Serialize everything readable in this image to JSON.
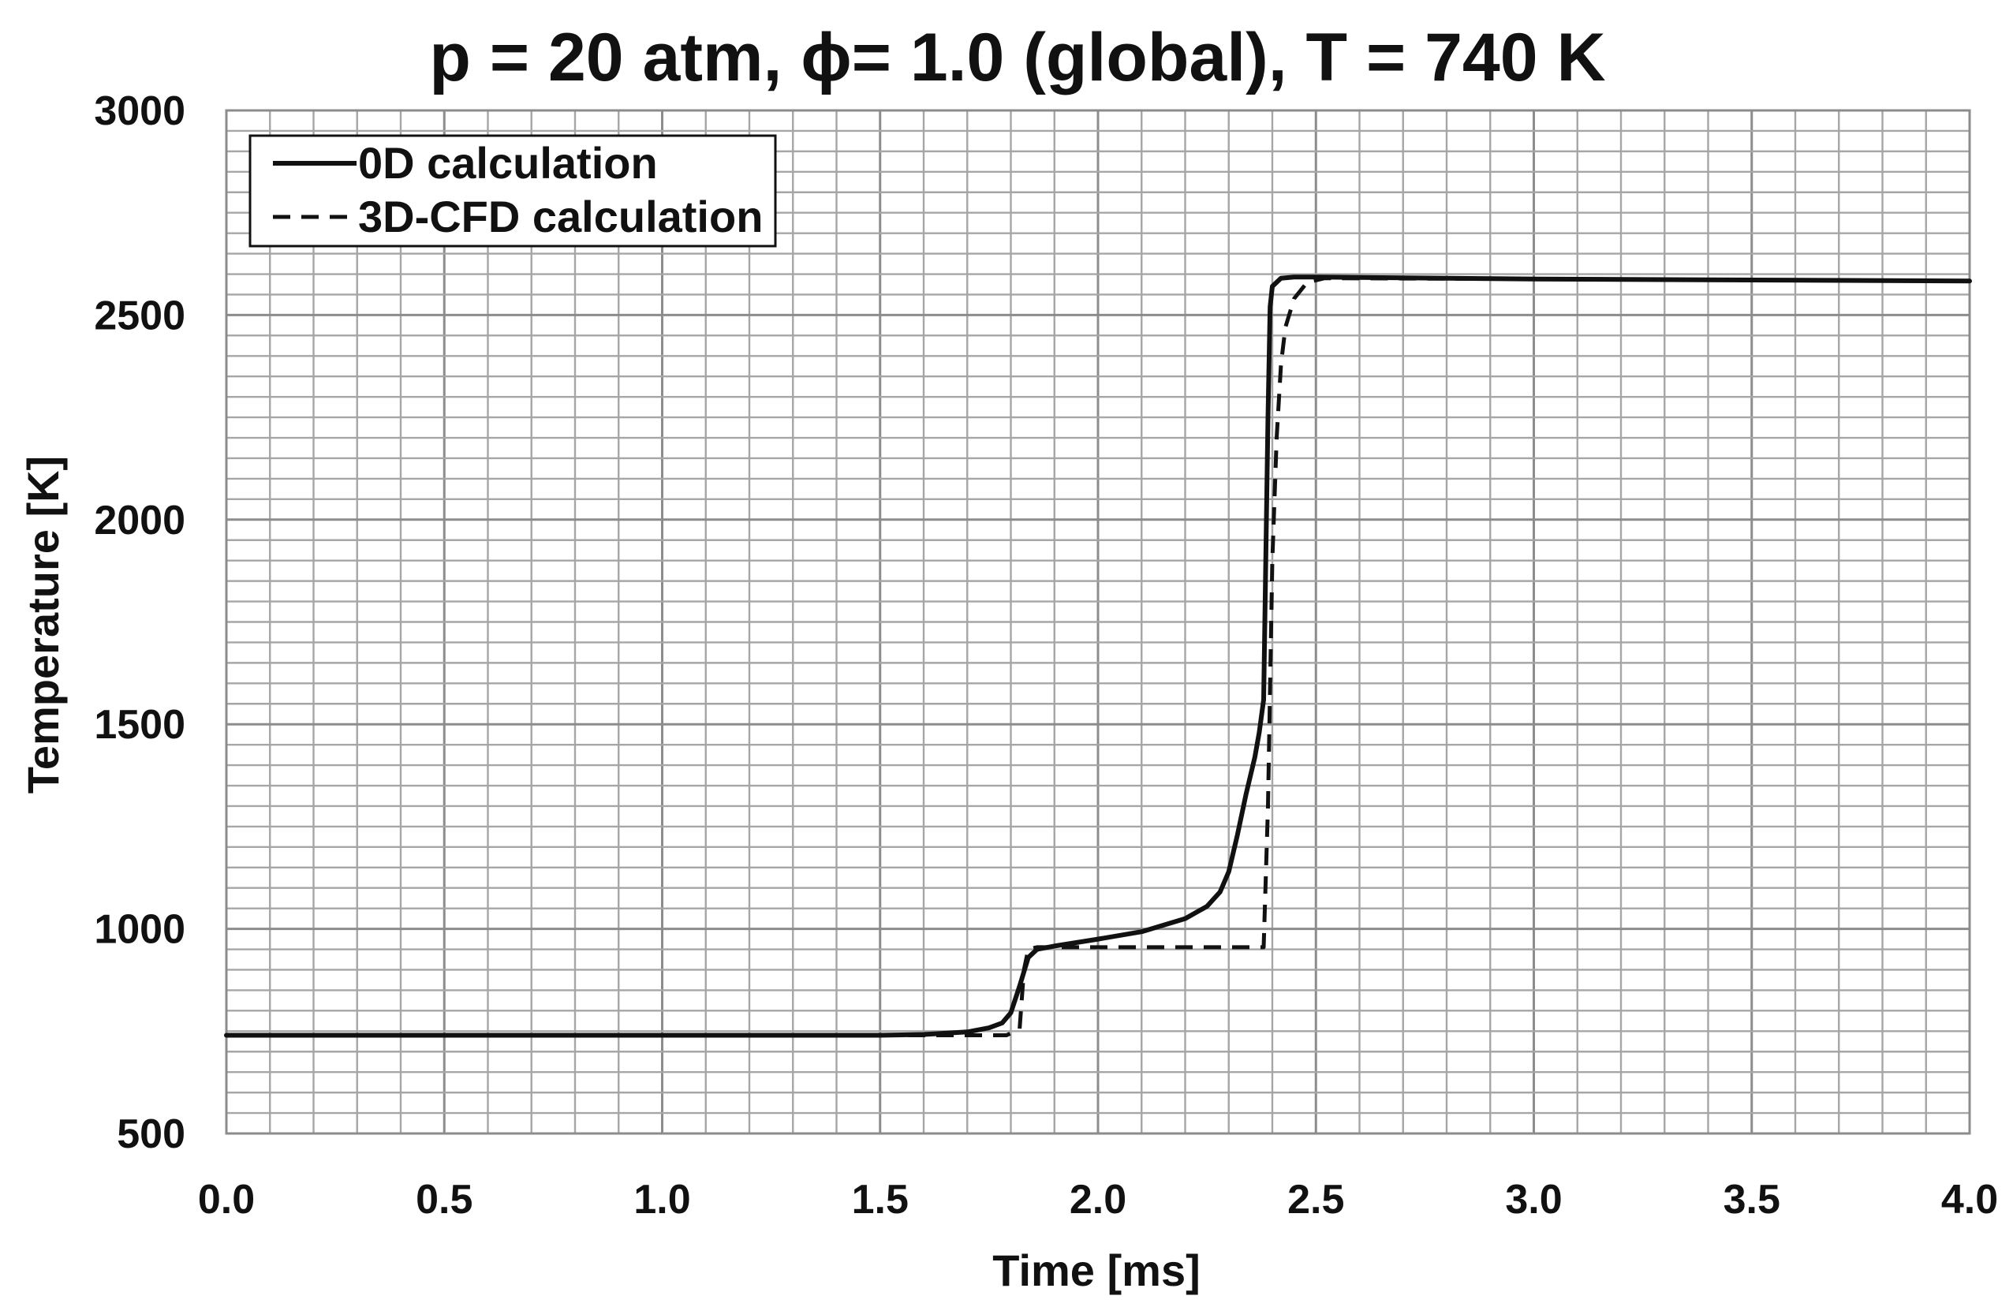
{
  "chart_data": {
    "type": "line",
    "title": "p = 20 atm, ϕ= 1.0 (global), T = 740 K",
    "xlabel": "Time [ms]",
    "ylabel": "Temperature [K]",
    "xlim": [
      0.0,
      4.0
    ],
    "ylim": [
      500,
      3000
    ],
    "x_ticks": [
      "0.0",
      "0.5",
      "1.0",
      "1.5",
      "2.0",
      "2.5",
      "3.0",
      "3.5",
      "4.0"
    ],
    "y_ticks": [
      "500",
      "1000",
      "1500",
      "2000",
      "2500",
      "3000"
    ],
    "grid": true,
    "legend_position": "top-left",
    "series": [
      {
        "name": "0D calculation",
        "style": "solid",
        "x": [
          0.0,
          1.5,
          1.6,
          1.7,
          1.75,
          1.78,
          1.8,
          1.82,
          1.84,
          1.86,
          1.9,
          2.0,
          2.1,
          2.2,
          2.25,
          2.28,
          2.3,
          2.32,
          2.34,
          2.36,
          2.37,
          2.38,
          2.385,
          2.39,
          2.395,
          2.4,
          2.42,
          2.45,
          2.5,
          3.0,
          4.0
        ],
        "values": [
          740,
          740,
          742,
          748,
          758,
          770,
          795,
          860,
          930,
          950,
          958,
          975,
          993,
          1025,
          1055,
          1090,
          1140,
          1230,
          1330,
          1420,
          1480,
          1560,
          1900,
          2250,
          2520,
          2570,
          2590,
          2593,
          2593,
          2588,
          2583
        ]
      },
      {
        "name": "3D-CFD calculation",
        "style": "dashed",
        "x": [
          0.0,
          1.6,
          1.79,
          1.82,
          1.83,
          1.84,
          1.86,
          2.38,
          2.39,
          2.4,
          2.41,
          2.42,
          2.43,
          2.45,
          2.48,
          2.52,
          3.0,
          4.0
        ],
        "values": [
          740,
          740,
          740,
          755,
          900,
          950,
          955,
          955,
          1300,
          1900,
          2200,
          2380,
          2470,
          2540,
          2580,
          2590,
          2588,
          2583
        ]
      }
    ]
  }
}
